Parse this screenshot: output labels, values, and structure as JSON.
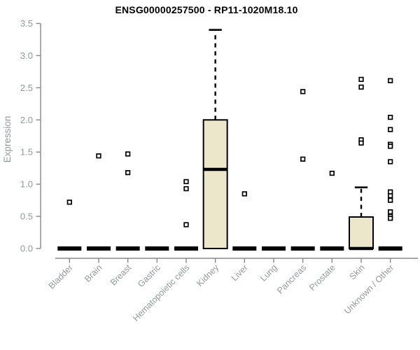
{
  "chart_data": {
    "type": "boxplot",
    "title": "ENSG00000257500 - RP11-1020M18.10",
    "ylabel": "Expression",
    "xlabel": "",
    "ylim": [
      0,
      3.5
    ],
    "yticks": [
      0.0,
      0.5,
      1.0,
      1.5,
      2.0,
      2.5,
      3.0,
      3.5
    ],
    "grid": false,
    "legend": "none",
    "categories": [
      "Bladder",
      "Brain",
      "Breast",
      "Gastric",
      "Hematopoietic cells",
      "Kidney",
      "Liver",
      "Lung",
      "Pancreas",
      "Prostate",
      "Skin",
      "Unknown / Other"
    ],
    "series": [
      {
        "category": "Bladder",
        "q1": 0,
        "median": 0,
        "q3": 0,
        "whisker_low": 0,
        "whisker_high": 0,
        "outliers": [
          0.72
        ]
      },
      {
        "category": "Brain",
        "q1": 0,
        "median": 0,
        "q3": 0,
        "whisker_low": 0,
        "whisker_high": 0,
        "outliers": [
          1.44
        ]
      },
      {
        "category": "Breast",
        "q1": 0,
        "median": 0,
        "q3": 0,
        "whisker_low": 0,
        "whisker_high": 0,
        "outliers": [
          1.47,
          1.18
        ]
      },
      {
        "category": "Gastric",
        "q1": 0,
        "median": 0,
        "q3": 0,
        "whisker_low": 0,
        "whisker_high": 0,
        "outliers": []
      },
      {
        "category": "Hematopoietic cells",
        "q1": 0,
        "median": 0,
        "q3": 0,
        "whisker_low": 0,
        "whisker_high": 0,
        "outliers": [
          1.04,
          0.93,
          0.37
        ]
      },
      {
        "category": "Kidney",
        "q1": 0,
        "median": 1.23,
        "q3": 2.0,
        "whisker_low": 0,
        "whisker_high": 3.4,
        "outliers": []
      },
      {
        "category": "Liver",
        "q1": 0,
        "median": 0,
        "q3": 0,
        "whisker_low": 0,
        "whisker_high": 0,
        "outliers": [
          0.85
        ]
      },
      {
        "category": "Lung",
        "q1": 0,
        "median": 0,
        "q3": 0,
        "whisker_low": 0,
        "whisker_high": 0,
        "outliers": []
      },
      {
        "category": "Pancreas",
        "q1": 0,
        "median": 0,
        "q3": 0,
        "whisker_low": 0,
        "whisker_high": 0,
        "outliers": [
          2.44,
          1.39
        ]
      },
      {
        "category": "Prostate",
        "q1": 0,
        "median": 0,
        "q3": 0,
        "whisker_low": 0,
        "whisker_high": 0,
        "outliers": [
          1.17
        ]
      },
      {
        "category": "Skin",
        "q1": 0,
        "median": 0,
        "q3": 0.49,
        "whisker_low": 0,
        "whisker_high": 0.95,
        "outliers": [
          2.63,
          2.51,
          1.69,
          1.64
        ]
      },
      {
        "category": "Unknown / Other",
        "q1": 0,
        "median": 0,
        "q3": 0,
        "whisker_low": 0,
        "whisker_high": 0,
        "outliers": [
          2.61,
          2.04,
          1.85,
          1.62,
          1.59,
          1.35,
          0.88,
          0.82,
          0.75,
          0.57,
          0.5,
          0.47
        ]
      }
    ],
    "colors": {
      "box_fill": "#ECE7CB",
      "box_border": "#000000",
      "median": "#000000",
      "whisker": "#000000",
      "outlier_stroke": "#000000",
      "outlier_fill": "#ffffff",
      "axis": "#898989",
      "tick_label": "#95999B",
      "title": "#000000",
      "background": "#ffffff"
    }
  }
}
